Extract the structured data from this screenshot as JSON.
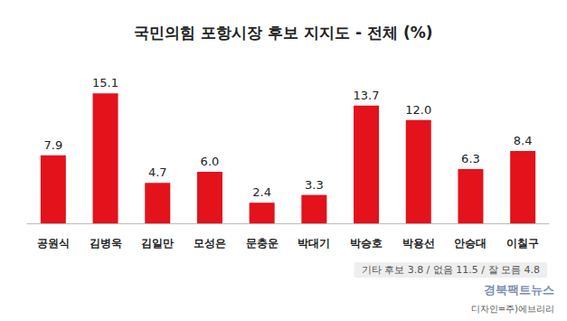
{
  "chart_data": {
    "type": "bar",
    "title": "국민의힘 포항시장 후보 지지도 - 전체 (%)",
    "categories": [
      "공원식",
      "김병욱",
      "김일만",
      "모성은",
      "문충운",
      "박대기",
      "박승호",
      "박용선",
      "안승대",
      "이칠구"
    ],
    "values": [
      7.9,
      15.1,
      4.7,
      6.0,
      2.4,
      3.3,
      13.7,
      12.0,
      6.3,
      8.4
    ],
    "value_labels": [
      "7.9",
      "15.1",
      "4.7",
      "6.0",
      "2.4",
      "3.3",
      "13.7",
      "12.0",
      "6.3",
      "8.4"
    ],
    "color": "#e3121b",
    "ylim": [
      0,
      16.5
    ],
    "grid": false,
    "data_labels": true,
    "tick_labels": "x",
    "annotations": {
      "note": "기타 후보 3.8 / 없음 11.5 / 잘 모름 4.8",
      "watermark": "경북팩트뉴스",
      "credit": "디자인=주)에브리리"
    }
  }
}
